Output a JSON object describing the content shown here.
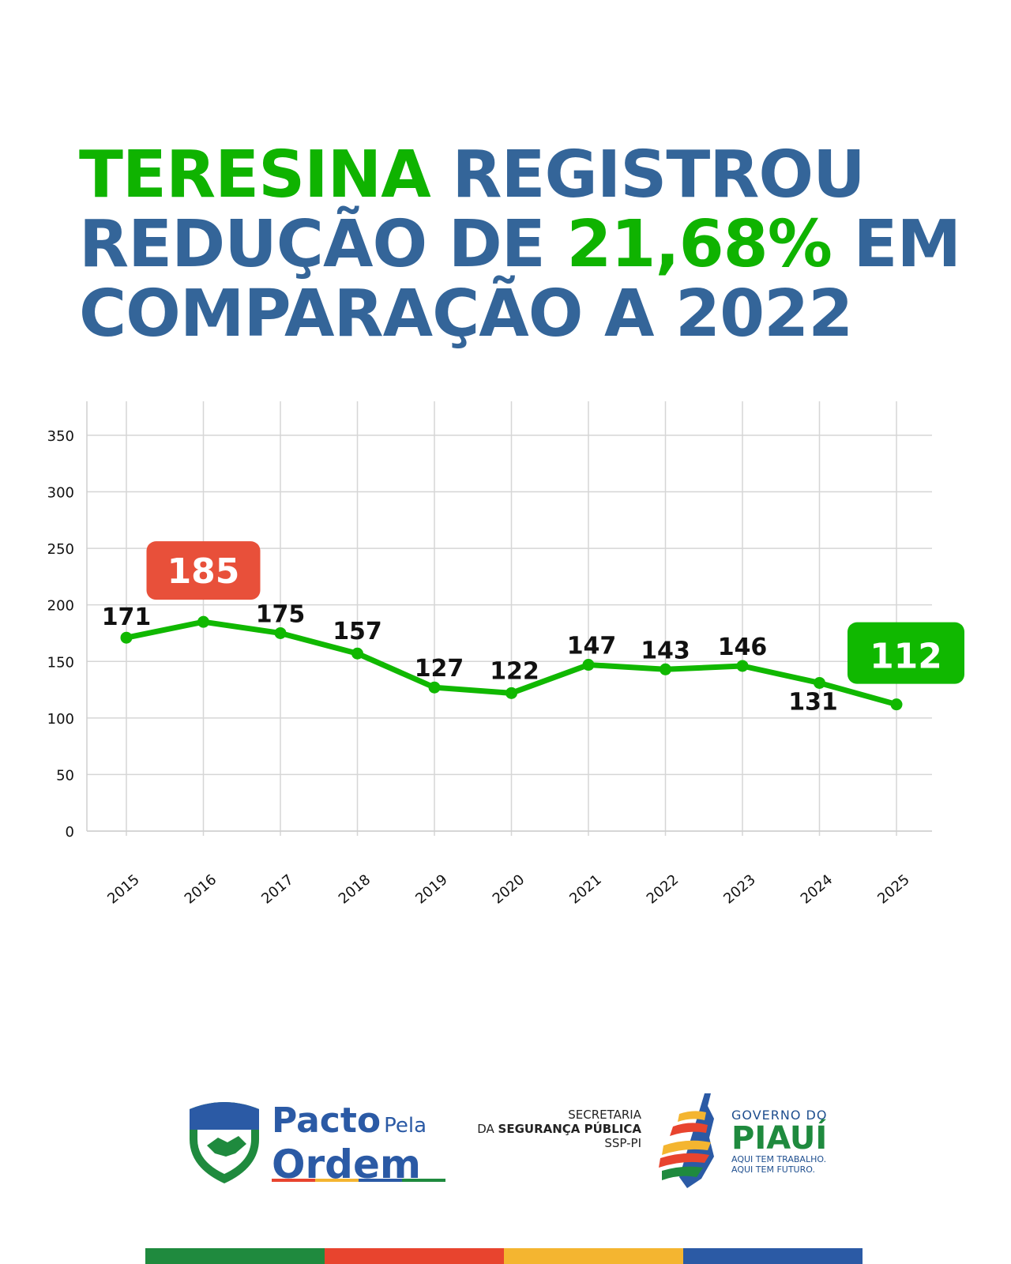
{
  "headline": {
    "line1_green": "TERESINA",
    "line1_rest": " REGISTROU",
    "line2_a": "REDUÇÃO DE ",
    "line2_green": "21,68%",
    "line2_b": " EM",
    "line3": "COMPARAÇÃO A 2022"
  },
  "chart_data": {
    "type": "line",
    "categories": [
      "2015",
      "2016",
      "2017",
      "2018",
      "2019",
      "2020",
      "2021",
      "2022",
      "2023",
      "2024",
      "2025"
    ],
    "series": [
      {
        "values": [
          171,
          185,
          175,
          157,
          127,
          122,
          147,
          143,
          146,
          131,
          112
        ]
      }
    ],
    "data_labels": [
      "171",
      "185",
      "175",
      "157",
      "127",
      "122",
      "147",
      "143",
      "146",
      "131",
      "112"
    ],
    "highlight_max": {
      "category": "2016",
      "value": 185,
      "color": "#e8503a"
    },
    "highlight_last": {
      "category": "2025",
      "value": 112,
      "color": "#10b800"
    },
    "ylim": [
      0,
      380
    ],
    "yticks": [
      0,
      50,
      100,
      150,
      200,
      250,
      300,
      350
    ],
    "line_color": "#10b800",
    "grid": true
  },
  "footer": {
    "pacto_line1": "Pacto",
    "pacto_pela": "Pela",
    "pacto_line2": "Ordem",
    "ssp_line1": "SECRETARIA",
    "ssp_line2_a": "DA ",
    "ssp_line2_b": "SEGURANÇA PÚBLICA",
    "ssp_line3": "SSP-PI",
    "gov_line1": "GOVERNO DO",
    "gov_line2": "PIAUÍ",
    "gov_line3": "AQUI TEM TRABALHO.",
    "gov_line4": "AQUI TEM FUTURO."
  },
  "colors": {
    "blue": "#346599",
    "green": "#0fb300",
    "red": "#e8503a",
    "bar": [
      "#1f8a3e",
      "#e8442e",
      "#f4b530",
      "#2b5aa5"
    ]
  }
}
